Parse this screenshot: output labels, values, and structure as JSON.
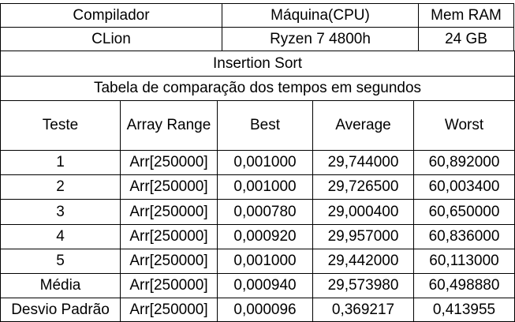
{
  "header": {
    "compiler_label": "Compilador",
    "machine_label": "Máquina(CPU)",
    "ram_label": "Mem RAM",
    "compiler_value": "CLion",
    "machine_value": "Ryzen 7 4800h",
    "ram_value": "24 GB"
  },
  "algorithm": "Insertion Sort",
  "table_caption": "Tabela de comparação dos tempos em segundos",
  "columns": [
    "Teste",
    "Array Range",
    "Best",
    "Average",
    "Worst"
  ],
  "rows": [
    [
      "1",
      "Arr[250000]",
      "0,001000",
      "29,744000",
      "60,892000"
    ],
    [
      "2",
      "Arr[250000]",
      "0,001000",
      "29,726500",
      "60,003400"
    ],
    [
      "3",
      "Arr[250000]",
      "0,000780",
      "29,000400",
      "60,650000"
    ],
    [
      "4",
      "Arr[250000]",
      "0,000920",
      "29,957000",
      "60,836000"
    ],
    [
      "5",
      "Arr[250000]",
      "0,001000",
      "29,442000",
      "60,113000"
    ],
    [
      "Média",
      "Arr[250000]",
      "0,000940",
      "29,573980",
      "60,498880"
    ],
    [
      "Desvio Padrão",
      "Arr[250000]",
      "0,000096",
      "0,369217",
      "0,413955"
    ]
  ]
}
